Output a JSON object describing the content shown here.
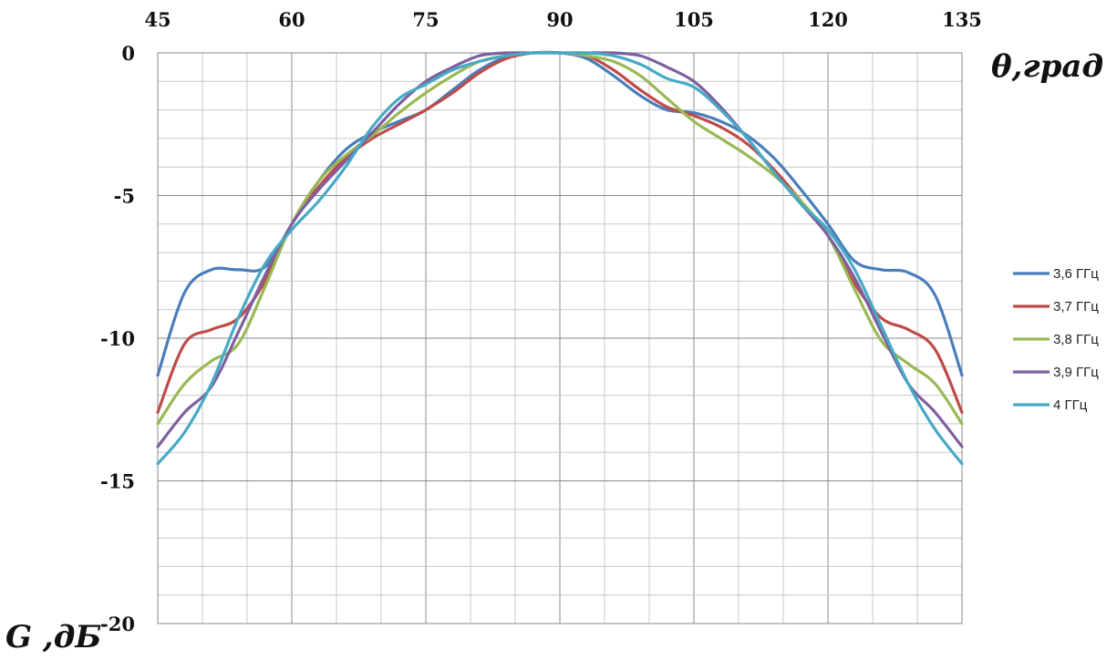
{
  "chart_data": {
    "type": "line",
    "xlabel": "θ,град",
    "ylabel": "G ,дБ",
    "xlim": [
      45,
      135
    ],
    "ylim": [
      -20,
      0
    ],
    "x_ticks": [
      45,
      60,
      75,
      90,
      105,
      120,
      135
    ],
    "y_ticks": [
      0,
      -5,
      -10,
      -15,
      -20
    ],
    "x_tick_labels": [
      "45",
      "60",
      "75",
      "90",
      "105",
      "120",
      "135"
    ],
    "y_tick_labels": [
      "0",
      "-5",
      "-10",
      "-15",
      "-20"
    ],
    "x_axis_position": "top",
    "grid": true,
    "legend_position": "right",
    "x": [
      45,
      48,
      51,
      54,
      57,
      60,
      63,
      66,
      69,
      72,
      75,
      78,
      81,
      84,
      87,
      90,
      93,
      96,
      99,
      102,
      105,
      108,
      111,
      114,
      117,
      120,
      123,
      126,
      129,
      132,
      135
    ],
    "series": [
      {
        "name": "3,6 ГГц",
        "color": "#4a7ebb",
        "values": [
          -11.3,
          -8.4,
          -7.6,
          -7.6,
          -7.5,
          -6.0,
          -4.5,
          -3.4,
          -2.8,
          -2.4,
          -2.0,
          -1.3,
          -0.6,
          -0.15,
          0,
          0,
          -0.2,
          -0.8,
          -1.5,
          -2.0,
          -2.1,
          -2.4,
          -2.9,
          -3.7,
          -4.8,
          -6.0,
          -7.3,
          -7.6,
          -7.7,
          -8.5,
          -11.3
        ]
      },
      {
        "name": "3,7 ГГц",
        "color": "#be4b48",
        "values": [
          -12.6,
          -10.2,
          -9.7,
          -9.3,
          -8.0,
          -6.0,
          -4.7,
          -3.7,
          -3.0,
          -2.5,
          -2.0,
          -1.4,
          -0.7,
          -0.2,
          0,
          0,
          -0.1,
          -0.6,
          -1.3,
          -1.9,
          -2.2,
          -2.6,
          -3.2,
          -4.1,
          -5.2,
          -6.4,
          -8.1,
          -9.3,
          -9.7,
          -10.4,
          -12.6
        ]
      },
      {
        "name": "3,8 ГГц",
        "color": "#98b954",
        "values": [
          -13.0,
          -11.6,
          -10.8,
          -10.2,
          -8.2,
          -6.0,
          -4.5,
          -3.6,
          -2.9,
          -2.1,
          -1.4,
          -0.8,
          -0.3,
          -0.1,
          0,
          0,
          -0.1,
          -0.3,
          -0.8,
          -1.6,
          -2.4,
          -3.0,
          -3.6,
          -4.3,
          -5.2,
          -6.4,
          -8.3,
          -10.1,
          -10.9,
          -11.6,
          -13.0
        ]
      },
      {
        "name": "3,9 ГГц",
        "color": "#7d60a0",
        "values": [
          -13.8,
          -12.6,
          -11.7,
          -9.8,
          -7.8,
          -6.0,
          -4.8,
          -3.8,
          -2.8,
          -1.8,
          -1.0,
          -0.5,
          -0.1,
          0,
          0,
          0,
          0,
          0,
          -0.1,
          -0.5,
          -1.0,
          -1.9,
          -3.0,
          -4.2,
          -5.3,
          -6.4,
          -7.9,
          -9.8,
          -11.6,
          -12.6,
          -13.8
        ]
      },
      {
        "name": "4 ГГц",
        "color": "#46aac5",
        "values": [
          -14.4,
          -13.3,
          -11.6,
          -9.3,
          -7.4,
          -6.2,
          -5.2,
          -4.0,
          -2.6,
          -1.6,
          -1.1,
          -0.6,
          -0.3,
          -0.1,
          0,
          0,
          0,
          -0.1,
          -0.4,
          -0.9,
          -1.2,
          -2.0,
          -3.0,
          -4.2,
          -5.3,
          -6.2,
          -7.6,
          -9.6,
          -11.6,
          -13.2,
          -14.4
        ]
      }
    ]
  }
}
